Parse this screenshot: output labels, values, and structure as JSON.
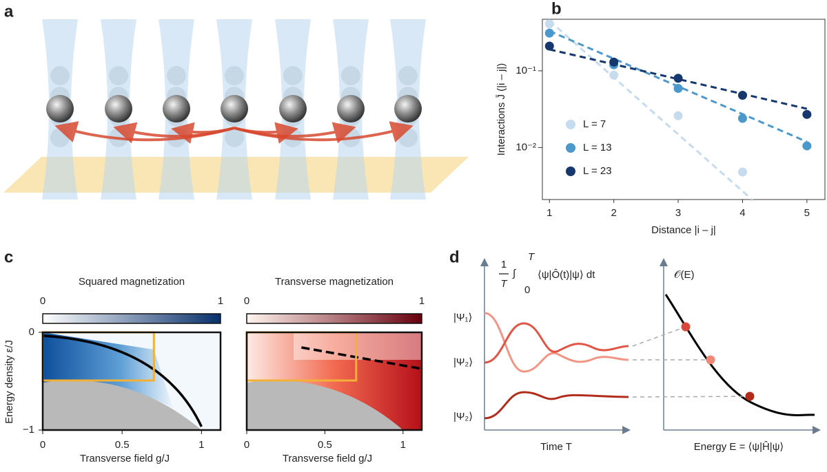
{
  "panel_labels": [
    "a",
    "b",
    "c",
    "d"
  ],
  "chart_data": {
    "type": "scatter",
    "x": [
      1,
      2,
      3,
      4,
      5
    ],
    "xlabel": "Distance |i – j|",
    "ylabel": "Interactions J̄ (|i – j|)",
    "xlim": [
      0.89,
      5.28
    ],
    "ylim": [
      0.0021,
      0.47
    ],
    "log_y": true,
    "xticks": [
      1,
      2,
      3,
      4,
      5
    ],
    "yticks": [
      {
        "value": 0.01,
        "label": "10⁻²"
      },
      {
        "value": 0.1,
        "label": "10⁻¹"
      }
    ],
    "legend": "lower left",
    "fit_x": [
      1,
      5
    ],
    "series": [
      {
        "name": "L = 7",
        "color": "#c6dcee",
        "values": [
          0.41,
          0.088,
          0.026,
          0.0048,
          null
        ],
        "fit": [
          0.45,
          0.00049
        ]
      },
      {
        "name": "L = 13",
        "color": "#4a98cc",
        "values": [
          0.31,
          0.12,
          0.059,
          0.024,
          0.0105
        ],
        "fit": [
          0.33,
          0.0119
        ]
      },
      {
        "name": "L = 23",
        "color": "#16386e",
        "values": [
          0.21,
          0.13,
          0.08,
          0.048,
          0.027
        ],
        "fit": [
          0.19,
          0.032
        ]
      }
    ]
  },
  "panel_c": {
    "ylabel": "Energy density ε/J",
    "xlim": [
      0,
      1.12
    ],
    "ylim": [
      -1,
      0
    ],
    "heatmaps": [
      {
        "title": "Squared magnetization",
        "colorbar_ticks": [
          0,
          1
        ],
        "xticks": [
          0,
          0.5,
          1
        ],
        "yticks": [
          0,
          {
            "value": -1,
            "label": "−1"
          }
        ],
        "xlabel": "Transverse field g/J"
      },
      {
        "title": "Transverse magnetization",
        "colorbar_ticks": [
          0,
          1
        ],
        "xticks": [
          0,
          0.5,
          1
        ],
        "xlabel": "Transverse field g/J"
      }
    ]
  },
  "panel_d": {
    "formula": {
      "num": "1",
      "den": "T",
      "integral": "∫",
      "lower": "0",
      "upper": "T",
      "body": "⟨ψ|Ô(t)|ψ⟩ dt"
    },
    "states": [
      "|Ψ₁⟩",
      "|Ψ₂⟩",
      "|Ψ₂⟩"
    ],
    "xlabel_left": "Time T",
    "ylabel_right": "𝒪(E)",
    "xlabel_right": "Energy E = ⟨ψ|Ĥ|ψ⟩"
  }
}
